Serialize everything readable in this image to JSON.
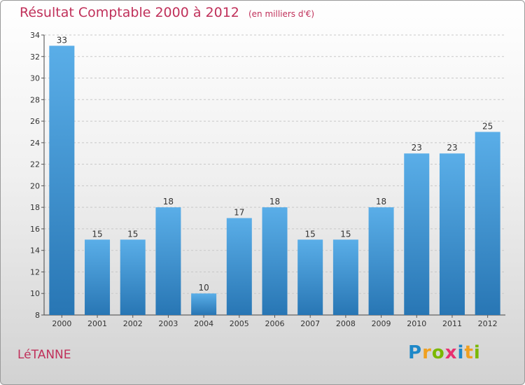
{
  "title": "Résultat Comptable 2000 à 2012",
  "subtitle": "(en milliers d'€)",
  "commune": "LéTANNE",
  "brand": {
    "letters": [
      "P",
      "r",
      "o",
      "x",
      "i",
      "t",
      "i"
    ],
    "colors": [
      "#1e88c8",
      "#f0a020",
      "#7ab800",
      "#e83070",
      "#1e88c8",
      "#f0a020",
      "#7ab800"
    ]
  },
  "colors": {
    "bar_top": "#5aaee8",
    "bar_bottom": "#2876b4",
    "title": "#c0305a",
    "grid": "#c8c8c8"
  },
  "chart_data": {
    "type": "bar",
    "title": "Résultat Comptable 2000 à 2012",
    "subtitle": "(en milliers d'€)",
    "categories": [
      "2000",
      "2001",
      "2002",
      "2003",
      "2004",
      "2005",
      "2006",
      "2007",
      "2008",
      "2009",
      "2010",
      "2011",
      "2012"
    ],
    "values": [
      33,
      15,
      15,
      18,
      10,
      17,
      18,
      15,
      15,
      18,
      23,
      23,
      25
    ],
    "ylim": [
      8,
      34
    ],
    "yticks": [
      8,
      10,
      12,
      14,
      16,
      18,
      20,
      22,
      24,
      26,
      28,
      30,
      32,
      34
    ],
    "grid": true,
    "data_labels": true,
    "legend": "none"
  }
}
